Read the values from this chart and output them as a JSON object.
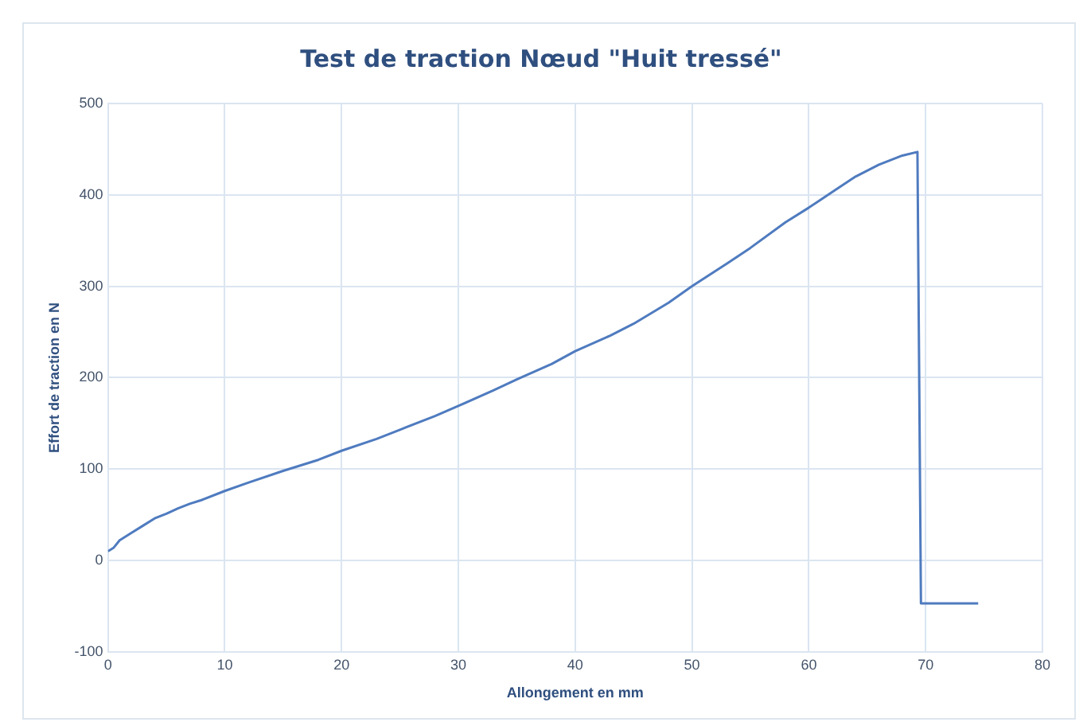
{
  "chart_data": {
    "type": "line",
    "title": "Test de traction Nœud \"Huit tressé\"",
    "xlabel": "Allongement en mm",
    "ylabel": "Effort de traction en N",
    "series": [
      {
        "color": "#4f7bbf",
        "x": [
          0,
          0.5,
          1,
          2,
          3,
          4,
          5,
          6,
          7,
          8,
          10,
          12,
          15,
          18,
          20,
          23,
          25,
          28,
          30,
          33,
          35,
          38,
          40,
          43,
          45,
          48,
          50,
          53,
          55,
          58,
          60,
          62,
          64,
          66,
          68,
          69.3,
          69.6,
          74.5
        ],
        "values": [
          10,
          14,
          22,
          30,
          38,
          46,
          51,
          57,
          62,
          66,
          76,
          85,
          98,
          110,
          120,
          133,
          143,
          158,
          169,
          186,
          198,
          215,
          229,
          246,
          259,
          282,
          300,
          325,
          342,
          370,
          386,
          403,
          420,
          433,
          443,
          447,
          -47,
          -47
        ]
      }
    ],
    "xlim": [
      0,
      80
    ],
    "xticks": [
      0,
      10,
      20,
      30,
      40,
      50,
      60,
      70,
      80
    ],
    "ylim": [
      -100,
      500
    ],
    "yticks": [
      -100,
      0,
      100,
      200,
      300,
      400,
      500
    ],
    "grid": true,
    "legend": false,
    "marker": "none",
    "line_style": "solid"
  }
}
